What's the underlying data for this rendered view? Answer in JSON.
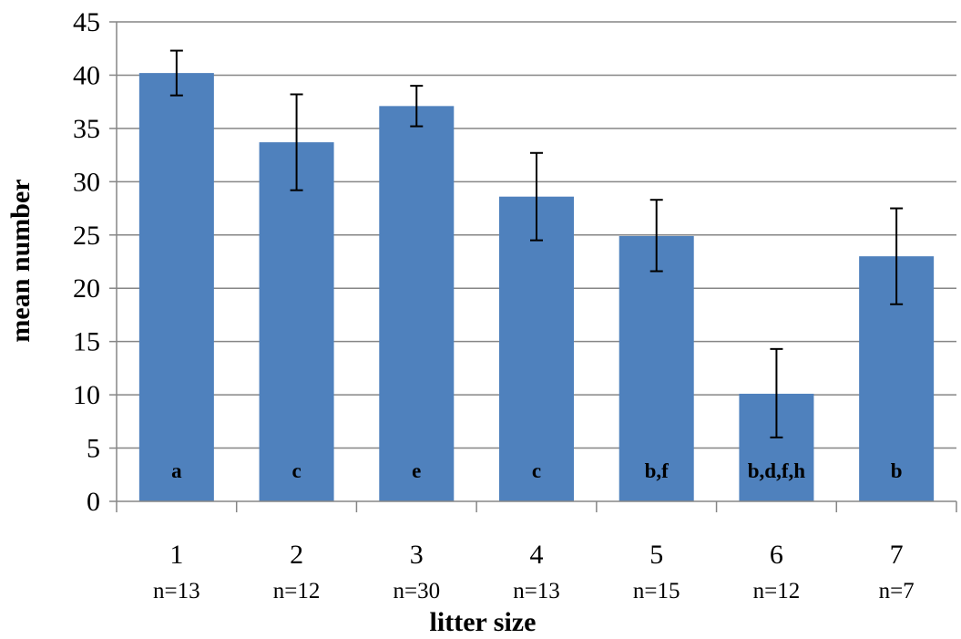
{
  "chart_data": {
    "type": "bar",
    "title": "",
    "xlabel": "litter size",
    "ylabel": "mean number",
    "ylim": [
      0,
      45
    ],
    "y_ticks": [
      0,
      5,
      10,
      15,
      20,
      25,
      30,
      35,
      40,
      45
    ],
    "grid": true,
    "legend": "none",
    "categories": [
      "1",
      "2",
      "3",
      "4",
      "5",
      "6",
      "7"
    ],
    "sample_sizes": [
      "n=13",
      "n=12",
      "n=30",
      "n=13",
      "n=15",
      "n=12",
      "n=7"
    ],
    "values": [
      40.2,
      33.7,
      37.1,
      28.6,
      24.9,
      10.1,
      23.0
    ],
    "error_low": [
      38.1,
      29.2,
      35.2,
      24.5,
      21.6,
      6.0,
      18.5
    ],
    "error_high": [
      42.3,
      38.2,
      39.0,
      32.7,
      28.3,
      14.3,
      27.5
    ],
    "significance_labels": [
      "a",
      "c",
      "e",
      "c",
      "b,f",
      "b,d,f,h",
      "b"
    ],
    "bar_color": "#4F81BD",
    "grid_color": "#868686"
  }
}
